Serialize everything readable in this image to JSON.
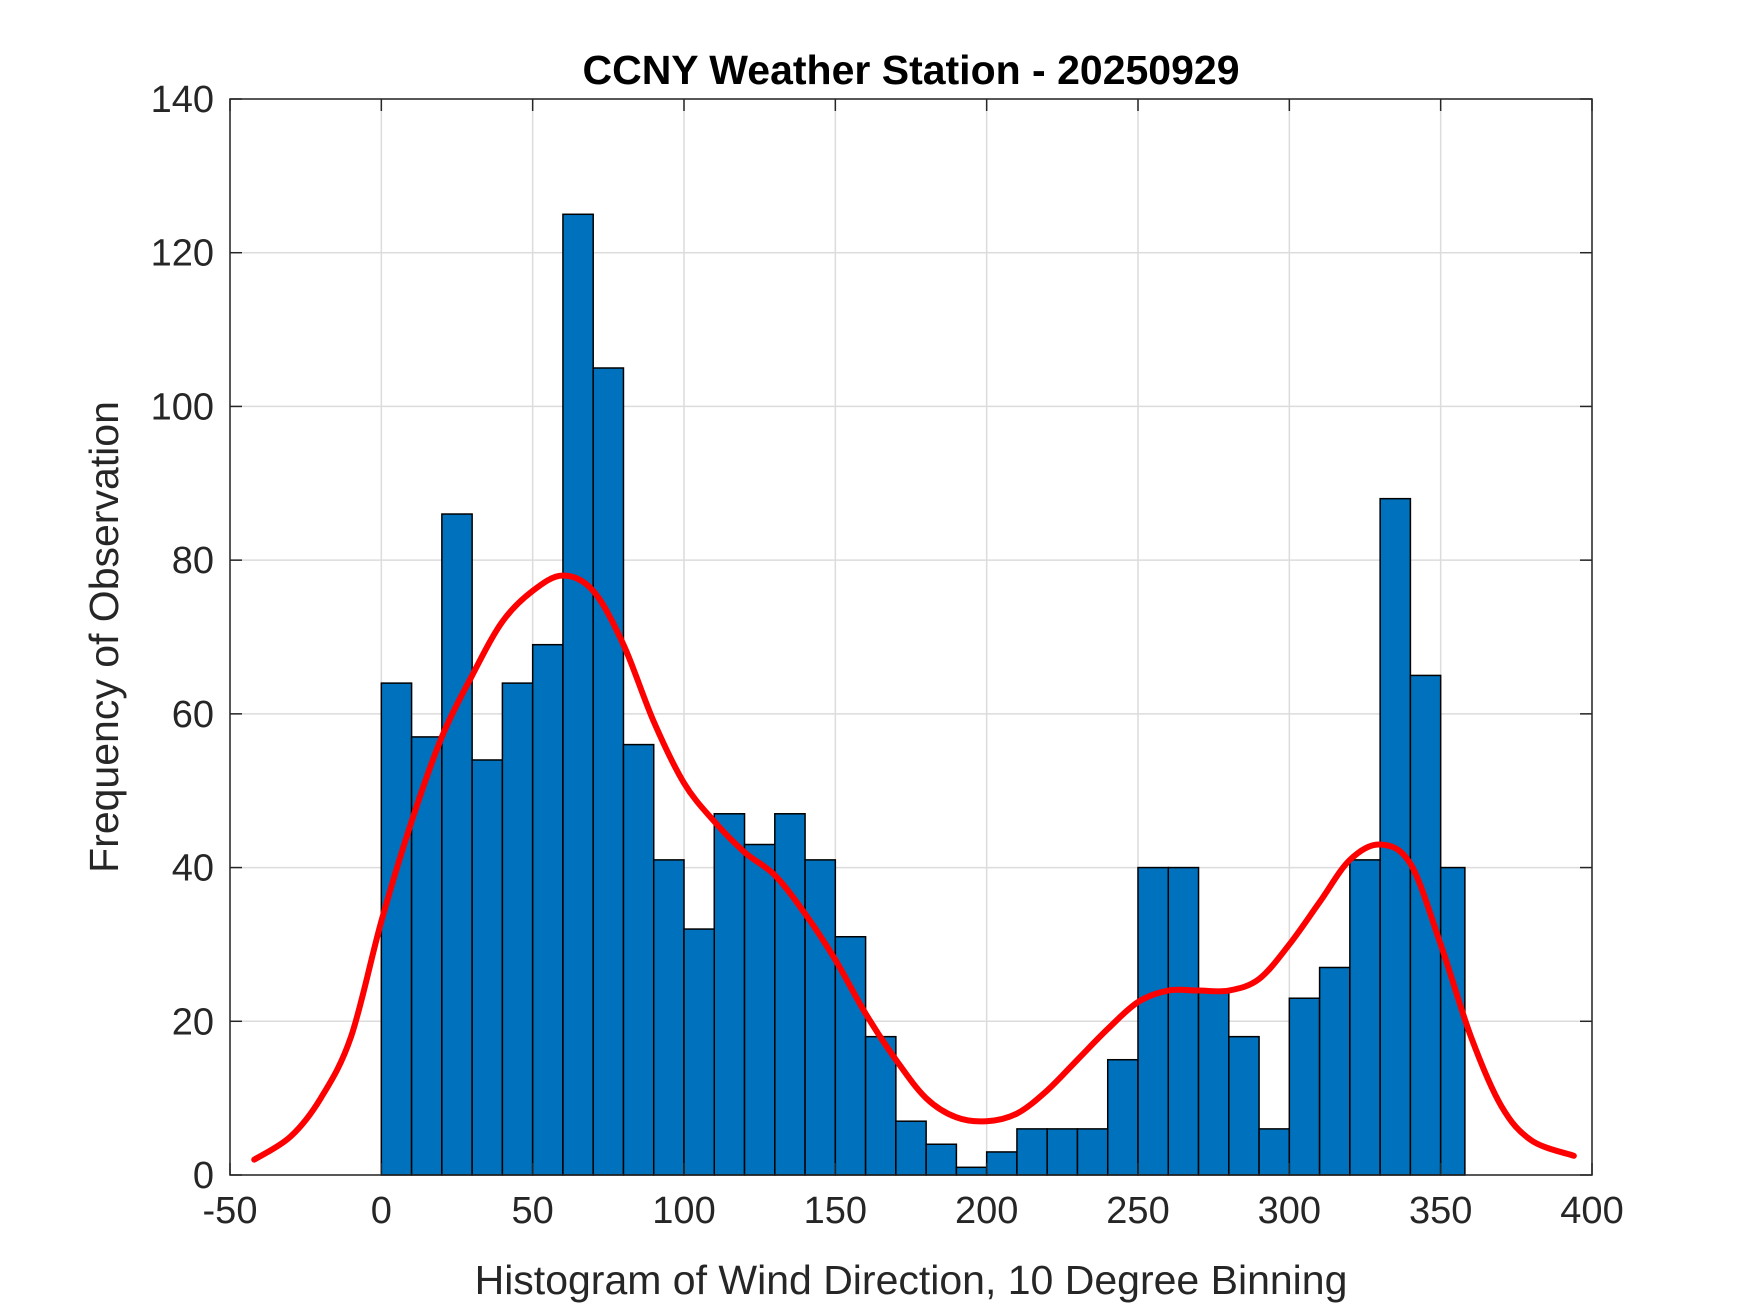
{
  "chart_data": {
    "type": "bar",
    "title": "CCNY Weather Station - 20250929",
    "xlabel": "Histogram of Wind Direction, 10 Degree Binning",
    "ylabel": "Frequency of Observation",
    "xlim": [
      -50,
      400
    ],
    "ylim": [
      0,
      140
    ],
    "xticks": [
      -50,
      0,
      50,
      100,
      150,
      200,
      250,
      300,
      350,
      400
    ],
    "yticks": [
      0,
      20,
      40,
      60,
      80,
      100,
      120,
      140
    ],
    "grid": true,
    "bin_width": 10,
    "bin_starts": [
      0,
      10,
      20,
      30,
      40,
      50,
      60,
      70,
      80,
      90,
      100,
      110,
      120,
      130,
      140,
      150,
      160,
      170,
      180,
      190,
      200,
      210,
      220,
      230,
      240,
      250,
      260,
      270,
      280,
      290,
      300,
      310,
      320,
      330,
      340,
      350
    ],
    "last_bin_end": 358,
    "values": [
      64,
      57,
      86,
      54,
      64,
      69,
      125,
      105,
      56,
      41,
      32,
      47,
      43,
      47,
      41,
      31,
      18,
      7,
      4,
      1,
      3,
      6,
      6,
      6,
      15,
      40,
      40,
      24,
      18,
      6,
      23,
      27,
      41,
      88,
      65,
      40
    ],
    "bar_color": "#0072BD",
    "bar_edge_color": "#000000",
    "curve": {
      "name": "density fit",
      "color": "#FF0000",
      "x": [
        -42,
        -30,
        -20,
        -10,
        0,
        10,
        20,
        30,
        40,
        50,
        60,
        70,
        80,
        90,
        100,
        110,
        120,
        130,
        140,
        150,
        160,
        170,
        180,
        190,
        200,
        210,
        220,
        230,
        240,
        250,
        260,
        270,
        280,
        290,
        300,
        310,
        320,
        330,
        340,
        350,
        360,
        370,
        380,
        394
      ],
      "y": [
        2,
        5,
        10,
        18,
        33,
        46,
        57,
        65,
        72,
        76,
        78,
        76,
        69,
        59,
        51,
        46,
        42,
        39,
        34,
        28,
        21,
        15,
        10,
        7.5,
        7,
        8,
        11,
        15,
        19,
        22.5,
        24,
        24,
        24,
        25.5,
        30,
        35.5,
        41,
        43,
        40.5,
        30,
        18,
        9,
        4.5,
        2.5
      ]
    }
  }
}
